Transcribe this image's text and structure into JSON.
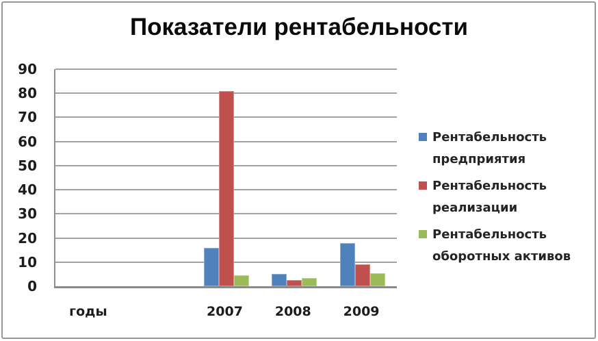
{
  "chart_data": {
    "type": "bar",
    "title": "Показатели рентабельности",
    "categories": [
      "годы",
      "",
      "2007",
      "2008",
      "2009"
    ],
    "series": [
      {
        "name": "Рентабельность предприятия",
        "color": "#4F81BD",
        "values": [
          null,
          null,
          16,
          5,
          18
        ]
      },
      {
        "name": "Рентабельность реализации",
        "color": "#C0504D",
        "values": [
          null,
          null,
          81,
          2.5,
          9
        ]
      },
      {
        "name": "Рентабельность оборотных активов",
        "color": "#9BBB59",
        "values": [
          null,
          null,
          4.5,
          3.5,
          5.5
        ]
      }
    ],
    "ylim": [
      0,
      90
    ],
    "y_ticks": [
      90,
      80,
      70,
      60,
      50,
      40,
      30,
      20,
      10,
      0
    ],
    "grid": true,
    "legend_position": "right",
    "colors": {
      "gridline": "#a2a2a2",
      "axis": "#8f8f8f",
      "text": "#1c1c1c",
      "title_text": "#0b0b0b",
      "frame_border": "#979797",
      "background": "#ffffff"
    }
  }
}
